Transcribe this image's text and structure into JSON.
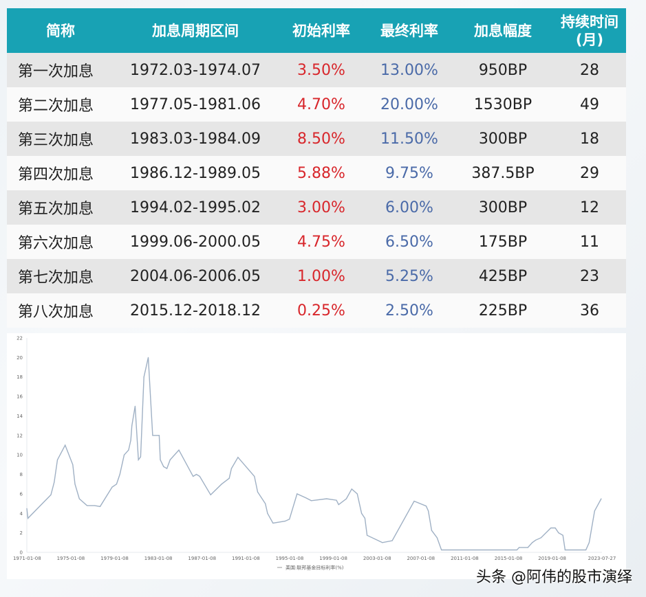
{
  "table": {
    "headers": [
      "简称",
      "加息周期区间",
      "初始利率",
      "最终利率",
      "加息幅度",
      "持续时间\n(月)"
    ],
    "header_duration_line1": "持续时间",
    "header_duration_line2": "(月)",
    "rows": [
      {
        "name": "第一次加息",
        "period": "1972.03-1974.07",
        "start": "3.50%",
        "end": "13.00%",
        "bp": "950BP",
        "months": "28"
      },
      {
        "name": "第二次加息",
        "period": "1977.05-1981.06",
        "start": "4.70%",
        "end": "20.00%",
        "bp": "1530BP",
        "months": "49"
      },
      {
        "name": "第三次加息",
        "period": "1983.03-1984.09",
        "start": "8.50%",
        "end": "11.50%",
        "bp": "300BP",
        "months": "18"
      },
      {
        "name": "第四次加息",
        "period": "1986.12-1989.05",
        "start": "5.88%",
        "end": "9.75%",
        "bp": "387.5BP",
        "months": "29"
      },
      {
        "name": "第五次加息",
        "period": "1994.02-1995.02",
        "start": "3.00%",
        "end": "6.00%",
        "bp": "300BP",
        "months": "12"
      },
      {
        "name": "第六次加息",
        "period": "1999.06-2000.05",
        "start": "4.75%",
        "end": "6.50%",
        "bp": "175BP",
        "months": "11"
      },
      {
        "name": "第七次加息",
        "period": "2004.06-2006.05",
        "start": "1.00%",
        "end": "5.25%",
        "bp": "425BP",
        "months": "23"
      },
      {
        "name": "第八次加息",
        "period": "2015.12-2018.12",
        "start": "0.25%",
        "end": "2.50%",
        "bp": "225BP",
        "months": "36"
      }
    ],
    "colors": {
      "header_bg": "#18a2b4",
      "start_rate": "#d8262b",
      "end_rate": "#4a6aa8"
    }
  },
  "chart_data": {
    "type": "line",
    "title": "",
    "xlabel": "",
    "ylabel": "",
    "ylim": [
      0,
      22
    ],
    "yticks": [
      0,
      2,
      4,
      6,
      8,
      10,
      12,
      14,
      16,
      18,
      20,
      22
    ],
    "xlim": [
      1971.0,
      2023.57
    ],
    "xticks": [
      {
        "label": "1971-01-08",
        "x": 1971.02
      },
      {
        "label": "1975-01-08",
        "x": 1975.02
      },
      {
        "label": "1979-01-08",
        "x": 1979.02
      },
      {
        "label": "1983-01-08",
        "x": 1983.02
      },
      {
        "label": "1987-01-08",
        "x": 1987.02
      },
      {
        "label": "1991-01-08",
        "x": 1991.02
      },
      {
        "label": "1995-01-08",
        "x": 1995.02
      },
      {
        "label": "1999-01-08",
        "x": 1999.02
      },
      {
        "label": "2003-01-08",
        "x": 2003.02
      },
      {
        "label": "2007-01-08",
        "x": 2007.02
      },
      {
        "label": "2011-01-08",
        "x": 2011.02
      },
      {
        "label": "2015-01-08",
        "x": 2015.02
      },
      {
        "label": "2019-01-08",
        "x": 2019.02
      },
      {
        "label": "2023-07-27",
        "x": 2023.57
      }
    ],
    "grid": false,
    "legend": "bottom-left",
    "series": [
      {
        "name": "美国:联邦基金目标利率(%)",
        "color": "#9fb0c4",
        "points": [
          [
            1971.0,
            4.5
          ],
          [
            1971.1,
            3.5
          ],
          [
            1973.2,
            5.9
          ],
          [
            1973.5,
            7.2
          ],
          [
            1973.8,
            9.5
          ],
          [
            1974.5,
            11
          ],
          [
            1975.2,
            9
          ],
          [
            1975.4,
            7
          ],
          [
            1975.8,
            5.5
          ],
          [
            1976.5,
            4.8
          ],
          [
            1977.2,
            4.8
          ],
          [
            1977.7,
            4.7
          ],
          [
            1978.8,
            6.7
          ],
          [
            1979.2,
            7
          ],
          [
            1979.5,
            8
          ],
          [
            1979.9,
            10
          ],
          [
            1980.3,
            10.5
          ],
          [
            1980.5,
            11.5
          ],
          [
            1980.6,
            13
          ],
          [
            1980.9,
            15
          ],
          [
            1981.2,
            9.5
          ],
          [
            1981.4,
            9.8
          ],
          [
            1981.7,
            18
          ],
          [
            1982.1,
            20
          ],
          [
            1982.5,
            12
          ],
          [
            1983.1,
            12
          ],
          [
            1983.2,
            9.5
          ],
          [
            1983.5,
            8.8
          ],
          [
            1983.8,
            8.6
          ],
          [
            1984.1,
            9.5
          ],
          [
            1984.9,
            10.5
          ],
          [
            1986.2,
            7.8
          ],
          [
            1986.5,
            8
          ],
          [
            1986.8,
            7.8
          ],
          [
            1987.8,
            5.9
          ],
          [
            1988.8,
            7
          ],
          [
            1989.5,
            7.6
          ],
          [
            1989.7,
            8.6
          ],
          [
            1990.3,
            9.75
          ],
          [
            1991.8,
            7.8
          ],
          [
            1992.1,
            6.2
          ],
          [
            1992.8,
            5
          ],
          [
            1993.0,
            4
          ],
          [
            1993.5,
            3
          ],
          [
            1994.6,
            3.2
          ],
          [
            1995.0,
            3.4
          ],
          [
            1995.7,
            6
          ],
          [
            1996.5,
            5.6
          ],
          [
            1997.0,
            5.3
          ],
          [
            1998.4,
            5.5
          ],
          [
            1999.3,
            5.35
          ],
          [
            1999.5,
            4.9
          ],
          [
            2000.2,
            5.5
          ],
          [
            2000.7,
            6.5
          ],
          [
            2001.2,
            6
          ],
          [
            2001.6,
            4
          ],
          [
            2001.9,
            3.5
          ],
          [
            2002.1,
            1.75
          ],
          [
            2003.5,
            1
          ],
          [
            2004.4,
            1.2
          ],
          [
            2006.4,
            5.25
          ],
          [
            2007.5,
            4.75
          ],
          [
            2007.7,
            4.25
          ],
          [
            2008.0,
            2.25
          ],
          [
            2008.5,
            1.5
          ],
          [
            2008.9,
            0.25
          ],
          [
            2015.8,
            0.25
          ],
          [
            2016.0,
            0.5
          ],
          [
            2016.8,
            0.5
          ],
          [
            2017.2,
            1
          ],
          [
            2017.5,
            1.25
          ],
          [
            2018.0,
            1.5
          ],
          [
            2018.9,
            2.5
          ],
          [
            2019.3,
            2.5
          ],
          [
            2019.6,
            2
          ],
          [
            2020.0,
            1.75
          ],
          [
            2020.2,
            0.25
          ],
          [
            2022.1,
            0.25
          ],
          [
            2022.4,
            1
          ],
          [
            2022.9,
            4.25
          ],
          [
            2023.5,
            5.5
          ]
        ]
      }
    ]
  },
  "watermark": "头条 @阿伟的股市演绎"
}
